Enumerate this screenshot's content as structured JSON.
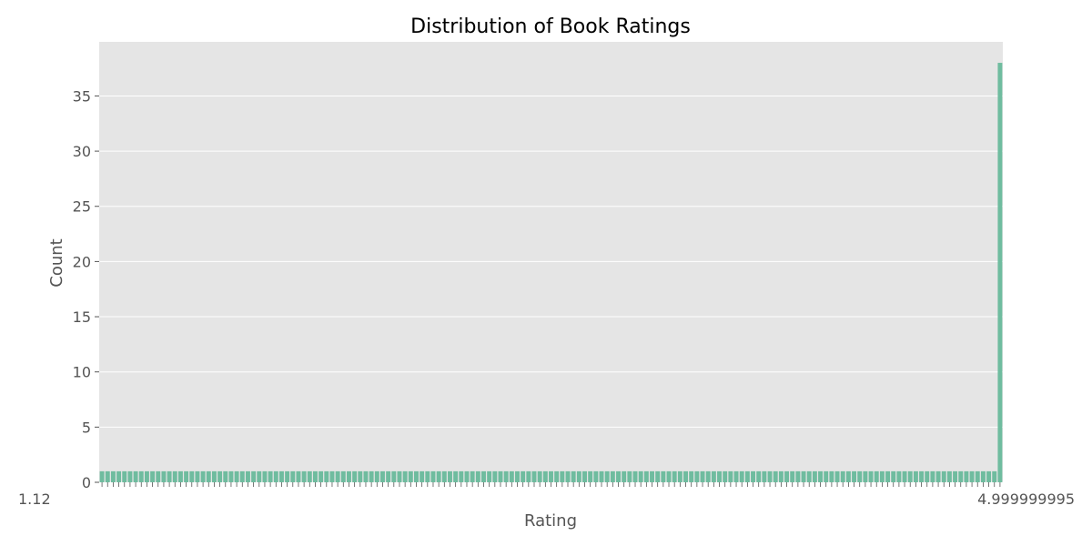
{
  "chart_data": {
    "type": "bar",
    "title": "Distribution of Book Ratings",
    "xlabel": "Rating",
    "ylabel": "Count",
    "ylim": [
      0,
      39.9
    ],
    "yticks": [
      0,
      5,
      10,
      15,
      20,
      25,
      30,
      35
    ],
    "grid": true,
    "legend": "none",
    "colors": {
      "bar": "#6fbc9f",
      "plot_bg": "#e5e5e5",
      "grid": "#ffffff"
    },
    "first_category_label": "1.12",
    "last_category_label": "4.999999995",
    "bar_count": 161,
    "values_rule": "all categories count 1 except the last category count 38",
    "last_value": 38,
    "other_value": 1
  }
}
